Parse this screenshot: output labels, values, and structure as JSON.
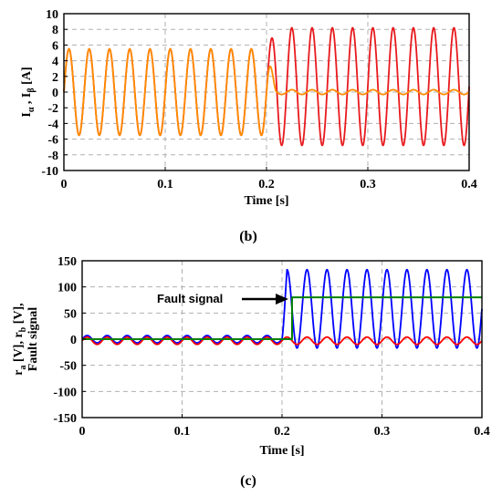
{
  "chart_data": [
    {
      "type": "line",
      "panel": "(b)",
      "xlabel": "Time [s]",
      "ylabel": "Iα , Iβ [A]",
      "xlim": [
        0,
        0.4
      ],
      "ylim": [
        -10,
        10
      ],
      "xticks": [
        "0",
        "0.1",
        "0.2",
        "0.3",
        "0.4"
      ],
      "yticks": [
        "10",
        "8",
        "6",
        "4",
        "2",
        "0",
        "-2",
        "-4",
        "-6",
        "-8",
        "-10"
      ],
      "grid": true,
      "fault_time": 0.2,
      "series": [
        {
          "color": "#e8191d",
          "frequency_hz": 50,
          "x": [
            0,
            0.2,
            0.21,
            0.4
          ],
          "amplitude": [
            5.5,
            5.5,
            7.5,
            7.5
          ],
          "offset": [
            0,
            0,
            0.7,
            0.7
          ]
        },
        {
          "color": "#ff8c00",
          "frequency_hz": 50,
          "x": [
            0,
            0.2,
            0.21,
            0.4
          ],
          "amplitude": [
            5.5,
            5.5,
            0.3,
            0.3
          ],
          "offset": [
            0,
            0,
            0,
            0
          ]
        }
      ]
    },
    {
      "type": "line",
      "panel": "(c)",
      "xlabel": "Time [s]",
      "ylabel": "ra [V], rb [V], Fault signal",
      "xlim": [
        0,
        0.4
      ],
      "ylim": [
        -150,
        150
      ],
      "xticks": [
        "0",
        "0.1",
        "0.2",
        "0.3",
        "0.4"
      ],
      "yticks": [
        "150",
        "100",
        "50",
        "0",
        "-50",
        "-100",
        "-150"
      ],
      "grid": true,
      "annotation": "Fault signal",
      "series": [
        {
          "color": "#0000ff",
          "frequency_hz": 50,
          "x": [
            0,
            0.2,
            0.205,
            0.4
          ],
          "amplitude": [
            7,
            7,
            75,
            75
          ],
          "offset": [
            0,
            0,
            58,
            58
          ]
        },
        {
          "color": "#ff0000",
          "frequency_hz": 50,
          "x": [
            0,
            0.4
          ],
          "amplitude": [
            7,
            7
          ],
          "offset": [
            -3,
            -3
          ]
        },
        {
          "color": "#008000",
          "step": {
            "x": [
              0,
              0.21,
              0.21,
              0.4
            ],
            "y": [
              0,
              0,
              80,
              80
            ]
          }
        }
      ]
    }
  ],
  "captions": {
    "b": "(b)",
    "c": "(c)"
  },
  "ylabel_parts": {
    "b": {
      "i1": "I",
      "s1": "α",
      "sep": " , ",
      "i2": "I",
      "s2": "β",
      "unit": " [A]"
    },
    "c": {
      "line1_r1": "r",
      "line1_s1": "a",
      "line1_mid": " [V], r",
      "line1_s2": "b",
      "line1_end": " [V],",
      "line2": "Fault signal"
    }
  }
}
